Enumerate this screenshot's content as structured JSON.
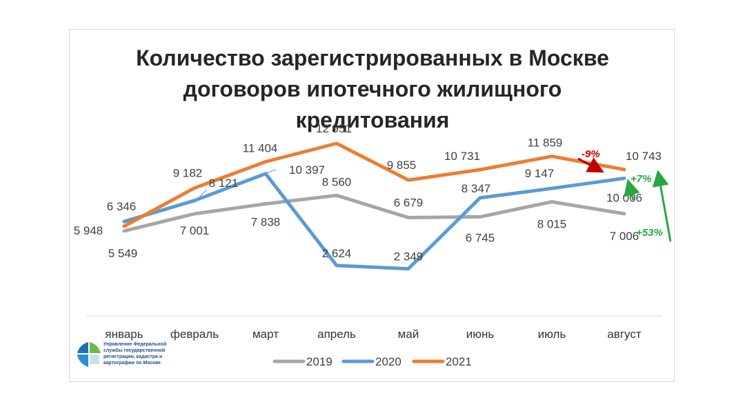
{
  "chart_data": {
    "type": "line",
    "title": "Количество зарегистрированных в Москве договоров ипотечного жилищного кредитования",
    "title_lines": [
      "Количество зарегистрированных в Москве",
      "договоров ипотечного жилищного",
      "кредитования"
    ],
    "categories": [
      "январь",
      "февраль",
      "март",
      "апрель",
      "май",
      "июнь",
      "июль",
      "август"
    ],
    "series": [
      {
        "name": "2019",
        "color": "#a6a6a6",
        "values": [
          5549,
          7001,
          7838,
          8560,
          6679,
          6745,
          8015,
          7006
        ],
        "labels": [
          "5 549",
          "7 001",
          "7 838",
          "8 560",
          "6 679",
          "6 745",
          "8 015",
          "7 006"
        ]
      },
      {
        "name": "2020",
        "color": "#5b9bd5",
        "values": [
          6346,
          8121,
          10397,
          2624,
          2349,
          8347,
          9147,
          10006
        ],
        "labels": [
          "6 346",
          "8 121",
          "10 397",
          "2 624",
          "2 349",
          "8 347",
          "9 147",
          "10 006"
        ]
      },
      {
        "name": "2021",
        "color": "#ed7d31",
        "values": [
          5948,
          9182,
          11404,
          12951,
          9855,
          10731,
          11859,
          10743
        ],
        "labels": [
          "5 948",
          "9 182",
          "11 404",
          "12 951",
          "9 855",
          "10 731",
          "11 859",
          "10 743"
        ]
      }
    ],
    "ylim": [
      0,
      14000
    ],
    "grid": false,
    "legend_position": "bottom",
    "annotations": [
      {
        "text": "-9%",
        "color": "#c00000"
      },
      {
        "text": "+7%",
        "color": "#28a745"
      },
      {
        "text": "+53%",
        "color": "#28a745"
      }
    ]
  },
  "logo": {
    "text_lines": [
      "Управление Федеральной",
      "службы государственной",
      "регистрации, кадастра и",
      "картографии по Москве"
    ]
  }
}
